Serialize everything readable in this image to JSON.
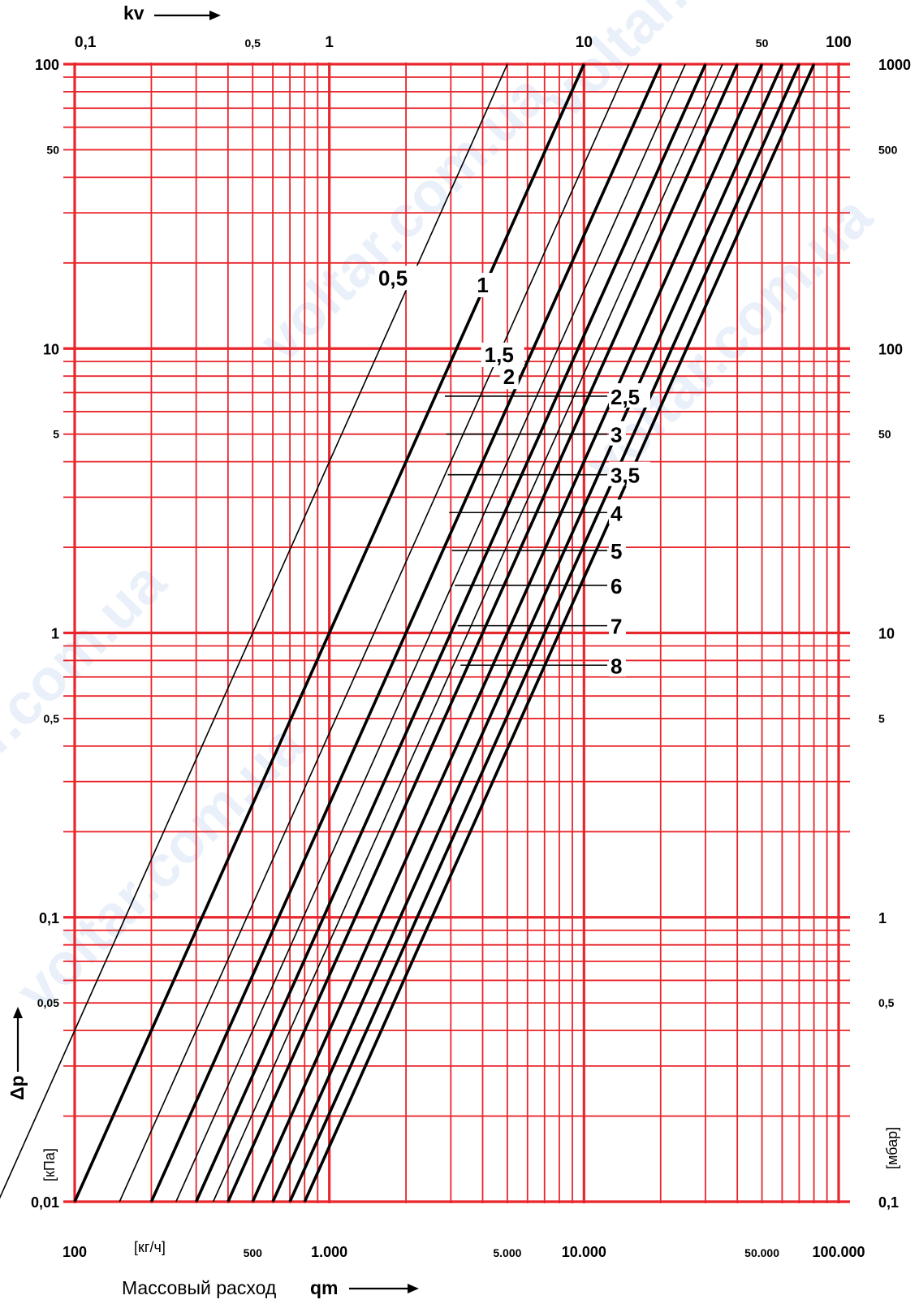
{
  "chart_data": {
    "type": "line",
    "x_scale": "log",
    "y_scale": "log",
    "grid": true,
    "top_axis": {
      "label": "kv",
      "range": [
        0.1,
        100
      ],
      "ticks": [
        {
          "v": 0.1,
          "t": "0,1",
          "major": true
        },
        {
          "v": 0.5,
          "t": "0,5",
          "major": false
        },
        {
          "v": 1,
          "t": "1",
          "major": true
        },
        {
          "v": 10,
          "t": "10",
          "major": true
        },
        {
          "v": 50,
          "t": "50",
          "major": false
        },
        {
          "v": 100,
          "t": "100",
          "major": true
        }
      ]
    },
    "bottom_axis": {
      "label": "Массовый расход",
      "label_bold": "qm",
      "unit": "[кг/ч]",
      "range": [
        100,
        100000
      ],
      "ticks": [
        {
          "v": 100,
          "t": "100",
          "major": true
        },
        {
          "v": 500,
          "t": "500",
          "major": false
        },
        {
          "v": 1000,
          "t": "1.000",
          "major": true
        },
        {
          "v": 5000,
          "t": "5.000",
          "major": false
        },
        {
          "v": 10000,
          "t": "10.000",
          "major": true
        },
        {
          "v": 50000,
          "t": "50.000",
          "major": false
        },
        {
          "v": 100000,
          "t": "100.000",
          "major": true
        }
      ]
    },
    "left_axis": {
      "label": "Δp",
      "unit": "[кПа]",
      "range": [
        0.01,
        100
      ],
      "ticks": [
        {
          "v": 100,
          "t": "100",
          "major": true
        },
        {
          "v": 50,
          "t": "50",
          "major": false
        },
        {
          "v": 10,
          "t": "10",
          "major": true
        },
        {
          "v": 5,
          "t": "5",
          "major": false
        },
        {
          "v": 1,
          "t": "1",
          "major": true
        },
        {
          "v": 0.5,
          "t": "0,5",
          "major": false
        },
        {
          "v": 0.1,
          "t": "0,1",
          "major": true
        },
        {
          "v": 0.05,
          "t": "0,05",
          "major": false
        },
        {
          "v": 0.01,
          "t": "0,01",
          "major": true
        }
      ]
    },
    "right_axis": {
      "unit": "[мбар]",
      "range": [
        0.1,
        1000
      ],
      "ticks": [
        {
          "v": 1000,
          "t": "1000",
          "major": true
        },
        {
          "v": 500,
          "t": "500",
          "major": false
        },
        {
          "v": 100,
          "t": "100",
          "major": true
        },
        {
          "v": 50,
          "t": "50",
          "major": false
        },
        {
          "v": 10,
          "t": "10",
          "major": true
        },
        {
          "v": 5,
          "t": "5",
          "major": false
        },
        {
          "v": 1,
          "t": "1",
          "major": true
        },
        {
          "v": 0.5,
          "t": "0,5",
          "major": false
        },
        {
          "v": 0.1,
          "t": "0,1",
          "major": true
        }
      ]
    },
    "series": [
      {
        "name": "0,5",
        "kv": 0.5,
        "weight": "thin"
      },
      {
        "name": "1",
        "kv": 1,
        "weight": "bold"
      },
      {
        "name": "1,5",
        "kv": 1.5,
        "weight": "thin"
      },
      {
        "name": "2",
        "kv": 2,
        "weight": "bold"
      },
      {
        "name": "2,5",
        "kv": 2.5,
        "weight": "thin"
      },
      {
        "name": "3",
        "kv": 3,
        "weight": "bold"
      },
      {
        "name": "3,5",
        "kv": 3.5,
        "weight": "thin"
      },
      {
        "name": "4",
        "kv": 4,
        "weight": "bold"
      },
      {
        "name": "5",
        "kv": 5,
        "weight": "bold"
      },
      {
        "name": "6",
        "kv": 6,
        "weight": "bold"
      },
      {
        "name": "7",
        "kv": 7,
        "weight": "bold"
      },
      {
        "name": "8",
        "kv": 8,
        "weight": "bold"
      }
    ],
    "colors": {
      "grid": "#e8262c",
      "line": "#000000"
    }
  },
  "watermark": "voltar.com.ua"
}
